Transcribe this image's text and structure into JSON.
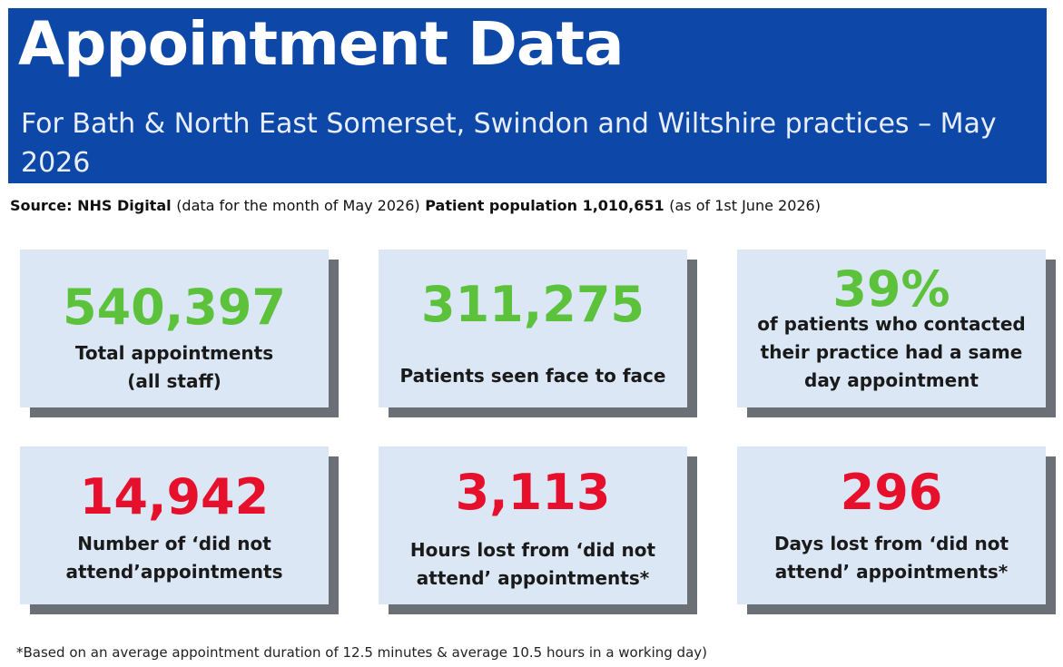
{
  "header": {
    "title": "Appointment Data",
    "subtitle": "For Bath & North East Somerset, Swindon and Wiltshire practices – May 2026"
  },
  "source": {
    "label": "Source: NHS Digital",
    "note": "(data for the month of May 2026)",
    "population_label": "Patient population  1,010,651",
    "population_note": "(as of 1st June 2026)"
  },
  "stats": [
    {
      "value": "540,397",
      "label_line1": "Total appointments",
      "label_line2": "(all staff)",
      "color": "#5cc23c"
    },
    {
      "value": "311,275",
      "label_line1": "Patients seen face to face",
      "color": "#5cc23c"
    },
    {
      "value": "39%",
      "label_line1": "of patients who contacted",
      "label_line2": "their practice had a same",
      "label_line3": "day appointment",
      "color": "#5cc23c"
    },
    {
      "value": "14,942",
      "label_line1": "Number of ‘did not",
      "label_line2": "attend’appointments",
      "color": "#e6102c"
    },
    {
      "value": "3,113",
      "label_line1": "Hours lost from ‘did not",
      "label_line2": "attend’ appointments*",
      "color": "#e6102c"
    },
    {
      "value": "296",
      "label_line1": "Days lost from ‘did not",
      "label_line2": "attend’ appointments*",
      "color": "#e6102c"
    }
  ],
  "footnote": "*Based on an average appointment duration of 12.5 minutes & average 10.5 hours in a working day)",
  "colors": {
    "banner": "#0d47a8",
    "card": "#dbe7f5",
    "card_shadow": "#6b6f76",
    "positive": "#5cc23c",
    "negative": "#e6102c"
  }
}
